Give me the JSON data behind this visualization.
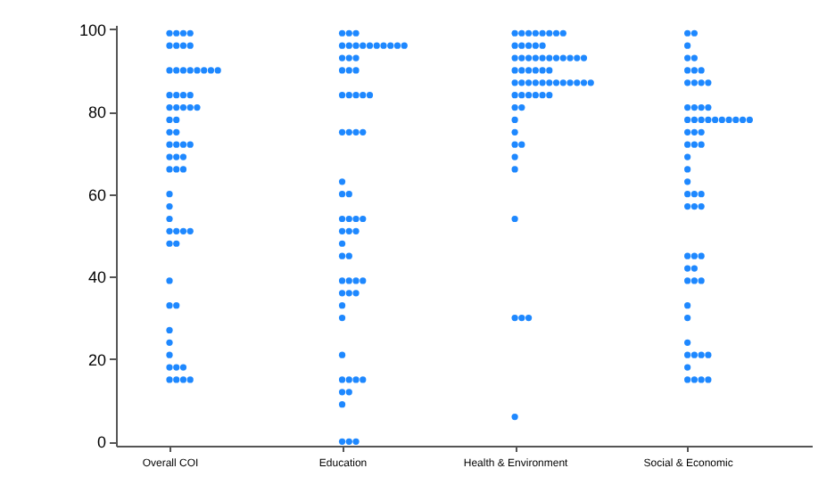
{
  "chart_data": {
    "type": "scatter",
    "categories": [
      "Overall COI",
      "Education",
      "Health & Environment",
      "Social & Economic"
    ],
    "ylim": [
      -1,
      101
    ],
    "yticks": [
      0,
      20,
      40,
      60,
      80,
      100
    ],
    "marker": "circle",
    "series": [
      {
        "color": "#1e88ff",
        "x": [
          "Overall COI",
          "Overall COI",
          "Overall COI",
          "Overall COI",
          "Overall COI",
          "Overall COI",
          "Overall COI",
          "Overall COI",
          "Overall COI",
          "Overall COI",
          "Overall COI",
          "Overall COI",
          "Overall COI",
          "Overall COI",
          "Overall COI",
          "Overall COI",
          "Overall COI",
          "Overall COI",
          "Overall COI",
          "Overall COI",
          "Overall COI",
          "Overall COI",
          "Overall COI",
          "Overall COI",
          "Overall COI",
          "Overall COI",
          "Overall COI",
          "Overall COI",
          "Overall COI",
          "Overall COI",
          "Overall COI",
          "Overall COI",
          "Overall COI",
          "Overall COI",
          "Overall COI",
          "Overall COI",
          "Overall COI",
          "Overall COI",
          "Overall COI",
          "Overall COI",
          "Overall COI",
          "Overall COI",
          "Overall COI",
          "Overall COI",
          "Overall COI",
          "Overall COI",
          "Overall COI",
          "Overall COI",
          "Overall COI",
          "Overall COI",
          "Overall COI",
          "Overall COI",
          "Overall COI",
          "Overall COI",
          "Overall COI",
          "Overall COI",
          "Overall COI",
          "Overall COI",
          "Overall COI",
          "Overall COI",
          "Overall COI"
        ],
        "values": [
          99,
          99,
          99,
          99,
          96,
          96,
          96,
          96,
          90,
          90,
          90,
          90,
          90,
          90,
          90,
          90,
          84,
          84,
          84,
          84,
          81,
          81,
          81,
          81,
          81,
          78,
          78,
          75,
          75,
          72,
          72,
          72,
          72,
          69,
          69,
          69,
          66,
          66,
          66,
          60,
          57,
          54,
          51,
          51,
          51,
          51,
          48,
          48,
          39,
          33,
          33,
          27,
          24,
          21,
          18,
          18,
          18,
          15,
          15,
          15,
          15
        ]
      },
      {
        "color": "#1e88ff",
        "x": [
          "Education",
          "Education",
          "Education",
          "Education",
          "Education",
          "Education",
          "Education",
          "Education",
          "Education",
          "Education",
          "Education",
          "Education",
          "Education",
          "Education",
          "Education",
          "Education",
          "Education",
          "Education",
          "Education",
          "Education",
          "Education",
          "Education",
          "Education",
          "Education",
          "Education",
          "Education",
          "Education",
          "Education",
          "Education",
          "Education",
          "Education",
          "Education",
          "Education",
          "Education",
          "Education",
          "Education",
          "Education",
          "Education",
          "Education",
          "Education",
          "Education",
          "Education",
          "Education",
          "Education",
          "Education",
          "Education",
          "Education",
          "Education",
          "Education",
          "Education",
          "Education",
          "Education",
          "Education",
          "Education",
          "Education",
          "Education",
          "Education",
          "Education",
          "Education",
          "Education",
          "Education"
        ],
        "values": [
          99,
          99,
          99,
          96,
          96,
          96,
          96,
          96,
          96,
          96,
          96,
          96,
          96,
          93,
          93,
          93,
          90,
          90,
          90,
          84,
          84,
          84,
          84,
          84,
          75,
          75,
          75,
          75,
          63,
          60,
          60,
          54,
          54,
          54,
          54,
          51,
          51,
          51,
          48,
          45,
          45,
          39,
          39,
          39,
          39,
          36,
          36,
          36,
          33,
          30,
          21,
          15,
          15,
          15,
          15,
          12,
          12,
          9,
          0,
          0,
          0
        ]
      },
      {
        "color": "#1e88ff",
        "x": [
          "Health & Environment",
          "Health & Environment",
          "Health & Environment",
          "Health & Environment",
          "Health & Environment",
          "Health & Environment",
          "Health & Environment",
          "Health & Environment",
          "Health & Environment",
          "Health & Environment",
          "Health & Environment",
          "Health & Environment",
          "Health & Environment",
          "Health & Environment",
          "Health & Environment",
          "Health & Environment",
          "Health & Environment",
          "Health & Environment",
          "Health & Environment",
          "Health & Environment",
          "Health & Environment",
          "Health & Environment",
          "Health & Environment",
          "Health & Environment",
          "Health & Environment",
          "Health & Environment",
          "Health & Environment",
          "Health & Environment",
          "Health & Environment",
          "Health & Environment",
          "Health & Environment",
          "Health & Environment",
          "Health & Environment",
          "Health & Environment",
          "Health & Environment",
          "Health & Environment",
          "Health & Environment",
          "Health & Environment",
          "Health & Environment",
          "Health & Environment",
          "Health & Environment",
          "Health & Environment",
          "Health & Environment",
          "Health & Environment",
          "Health & Environment",
          "Health & Environment",
          "Health & Environment",
          "Health & Environment",
          "Health & Environment",
          "Health & Environment",
          "Health & Environment",
          "Health & Environment",
          "Health & Environment",
          "Health & Environment",
          "Health & Environment",
          "Health & Environment",
          "Health & Environment",
          "Health & Environment",
          "Health & Environment",
          "Health & Environment",
          "Health & Environment"
        ],
        "values": [
          99,
          99,
          99,
          99,
          99,
          99,
          99,
          99,
          96,
          96,
          96,
          96,
          96,
          93,
          93,
          93,
          93,
          93,
          93,
          93,
          93,
          93,
          93,
          93,
          90,
          90,
          90,
          90,
          90,
          90,
          87,
          87,
          87,
          87,
          87,
          87,
          87,
          87,
          87,
          87,
          87,
          87,
          84,
          84,
          84,
          84,
          84,
          84,
          81,
          81,
          78,
          75,
          72,
          72,
          69,
          66,
          54,
          30,
          30,
          30,
          6
        ]
      },
      {
        "color": "#1e88ff",
        "x": [
          "Social & Economic",
          "Social & Economic",
          "Social & Economic",
          "Social & Economic",
          "Social & Economic",
          "Social & Economic",
          "Social & Economic",
          "Social & Economic",
          "Social & Economic",
          "Social & Economic",
          "Social & Economic",
          "Social & Economic",
          "Social & Economic",
          "Social & Economic",
          "Social & Economic",
          "Social & Economic",
          "Social & Economic",
          "Social & Economic",
          "Social & Economic",
          "Social & Economic",
          "Social & Economic",
          "Social & Economic",
          "Social & Economic",
          "Social & Economic",
          "Social & Economic",
          "Social & Economic",
          "Social & Economic",
          "Social & Economic",
          "Social & Economic",
          "Social & Economic",
          "Social & Economic",
          "Social & Economic",
          "Social & Economic",
          "Social & Economic",
          "Social & Economic",
          "Social & Economic",
          "Social & Economic",
          "Social & Economic",
          "Social & Economic",
          "Social & Economic",
          "Social & Economic",
          "Social & Economic",
          "Social & Economic",
          "Social & Economic",
          "Social & Economic",
          "Social & Economic",
          "Social & Economic",
          "Social & Economic",
          "Social & Economic",
          "Social & Economic",
          "Social & Economic",
          "Social & Economic",
          "Social & Economic",
          "Social & Economic",
          "Social & Economic",
          "Social & Economic",
          "Social & Economic",
          "Social & Economic",
          "Social & Economic",
          "Social & Economic",
          "Social & Economic"
        ],
        "values": [
          99,
          99,
          96,
          93,
          93,
          90,
          90,
          90,
          87,
          87,
          87,
          87,
          81,
          81,
          81,
          81,
          78,
          78,
          78,
          78,
          78,
          78,
          78,
          78,
          78,
          78,
          75,
          75,
          75,
          72,
          72,
          72,
          69,
          66,
          63,
          60,
          60,
          60,
          57,
          57,
          57,
          45,
          45,
          45,
          42,
          42,
          39,
          39,
          39,
          33,
          30,
          24,
          21,
          21,
          21,
          21,
          18,
          15,
          15,
          15,
          15
        ]
      }
    ]
  }
}
